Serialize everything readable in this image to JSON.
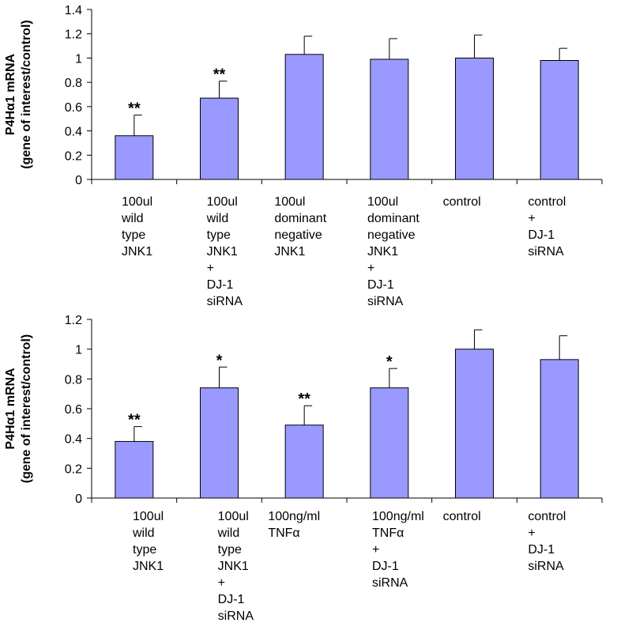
{
  "chart_data": [
    {
      "type": "bar",
      "ylabel_line1": "P4Hα1 mRNA",
      "ylabel_line2": "(gene of interest/control)",
      "ylim": [
        0,
        1.4
      ],
      "yticks": [
        "0",
        "0.2",
        "0.4",
        "0.6",
        "0.8",
        "1",
        "1.2",
        "1.4"
      ],
      "bar_color": "#9999ff",
      "categories": [
        [
          "100ul",
          "wild",
          "type",
          "JNK1"
        ],
        [
          "100ul",
          "wild",
          "type",
          "JNK1",
          "+",
          "DJ-1",
          "siRNA"
        ],
        [
          "100ul",
          "dominant",
          "negative",
          "JNK1"
        ],
        [
          "100ul",
          "dominant",
          "negative",
          "JNK1",
          "+",
          "DJ-1",
          "siRNA"
        ],
        [
          "control"
        ],
        [
          "control",
          "+",
          "DJ-1",
          "siRNA"
        ]
      ],
      "values": [
        0.36,
        0.67,
        1.03,
        0.99,
        1.0,
        0.98
      ],
      "errors": [
        0.17,
        0.14,
        0.15,
        0.17,
        0.19,
        0.1
      ],
      "significance": [
        "**",
        "**",
        "",
        "",
        "",
        ""
      ]
    },
    {
      "type": "bar",
      "ylabel_line1": "P4Hα1 mRNA",
      "ylabel_line2": "(gene of interest/control)",
      "ylim": [
        0,
        1.2
      ],
      "yticks": [
        "0",
        "0.2",
        "0.4",
        "0.6",
        "0.8",
        "1",
        "1.2"
      ],
      "bar_color": "#9999ff",
      "categories": [
        [
          "100ul",
          "wild",
          "type",
          "JNK1"
        ],
        [
          "100ul",
          "wild",
          "type",
          "JNK1",
          "+",
          "DJ-1",
          "siRNA"
        ],
        [
          "100ng/ml",
          "TNFα"
        ],
        [
          "100ng/ml",
          "TNFα",
          "+",
          "DJ-1",
          "siRNA"
        ],
        [
          "control"
        ],
        [
          "control",
          "+",
          "DJ-1",
          "siRNA"
        ]
      ],
      "values": [
        0.38,
        0.74,
        0.49,
        0.74,
        1.0,
        0.93
      ],
      "errors": [
        0.1,
        0.14,
        0.13,
        0.13,
        0.13,
        0.16
      ],
      "significance": [
        "**",
        "*",
        "**",
        "*",
        "",
        ""
      ]
    }
  ]
}
